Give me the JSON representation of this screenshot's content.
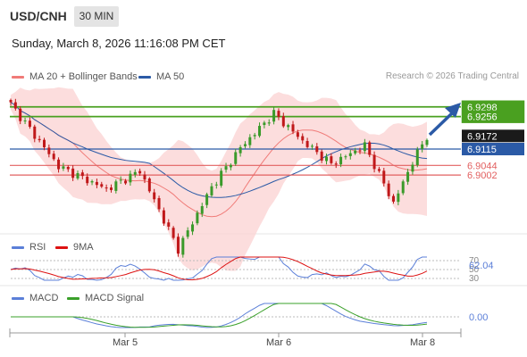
{
  "header": {
    "pair": "USD/CNH",
    "timeframe": "30 MIN"
  },
  "datetime": "Sunday, March 8, 2026 11:16:08 PM CET",
  "source": "Research © 2026 Trading Central",
  "legends": {
    "price": [
      {
        "label": "MA 20 + Bollinger Bands",
        "color": "#f07b78"
      },
      {
        "label": "MA 50",
        "color": "#2b5aa6"
      }
    ],
    "rsi": [
      {
        "label": "RSI",
        "color": "#5b7fd8"
      },
      {
        "label": "9MA",
        "color": "#dd1111"
      }
    ],
    "macd": [
      {
        "label": "MACD",
        "color": "#5b7fd8"
      },
      {
        "label": "MACD Signal",
        "color": "#3aa02a"
      }
    ]
  },
  "colors": {
    "up": "#3a9a2a",
    "down": "#c0181a",
    "target": "#4aa020",
    "pivot": "#2b5aa6",
    "support": "#e26060",
    "arrow": "#2b5aa6",
    "band": "#fbd2d2"
  },
  "chart_data": {
    "type": "candlestick",
    "x_ticks": [
      "Mar 5",
      "Mar 6",
      "Mar 8"
    ],
    "y_range": [
      6.856,
      6.937
    ],
    "levels": [
      {
        "value": 6.9298,
        "label": "6.9298",
        "kind": "target"
      },
      {
        "value": 6.9256,
        "label": "6.9256",
        "kind": "target"
      },
      {
        "value": 6.9172,
        "label": "6.9172",
        "kind": "last"
      },
      {
        "value": 6.9115,
        "label": "6.9115",
        "kind": "pivot"
      },
      {
        "value": 6.9044,
        "label": "6.9044",
        "kind": "support"
      },
      {
        "value": 6.9002,
        "label": "6.9002",
        "kind": "support"
      }
    ],
    "rsi": {
      "value": "62.04",
      "scale_labels": [
        "70",
        "50",
        "30"
      ]
    },
    "macd": {
      "value": "0.00"
    }
  }
}
